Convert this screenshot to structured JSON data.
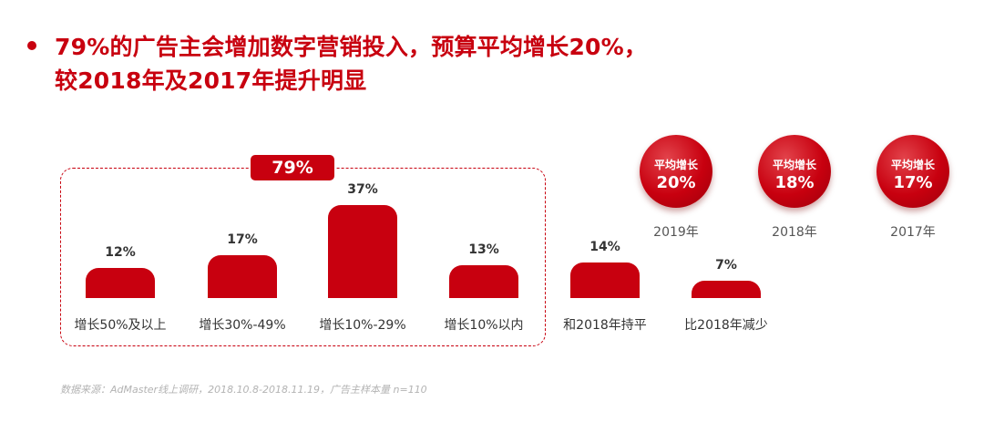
{
  "headline": {
    "line1": "79%的广告主会增加数字营销投入，预算平均增长20%，",
    "line2": "较2018年及2017年提升明显"
  },
  "group_badge": "79%",
  "chart_data": [
    {
      "type": "bar",
      "categories": [
        "增长50%及以上",
        "增长30%-49%",
        "增长10%-29%",
        "增长10%以内",
        "和2018年持平",
        "比2018年减少"
      ],
      "values": [
        12,
        17,
        37,
        13,
        14,
        7
      ],
      "value_labels": [
        "12%",
        "17%",
        "37%",
        "13%",
        "14%",
        "7%"
      ],
      "grouped_total": {
        "label": "79%",
        "categories": [
          "增长50%及以上",
          "增长30%-49%",
          "增长10%-29%",
          "增长10%以内"
        ]
      },
      "ylim": [
        0,
        37
      ],
      "grid": false
    },
    {
      "type": "table",
      "items": [
        {
          "year": "2019年",
          "label": "平均增长",
          "value": "20%"
        },
        {
          "year": "2018年",
          "label": "平均增长",
          "value": "18%"
        },
        {
          "year": "2017年",
          "label": "平均增长",
          "value": "17%"
        }
      ]
    }
  ],
  "source": "数据来源：AdMaster线上调研，2018.10.8-2018.11.19，广告主样本量 n=110",
  "colors": {
    "accent": "#c8000f",
    "text": "#333333",
    "source": "#b3b3b3"
  }
}
